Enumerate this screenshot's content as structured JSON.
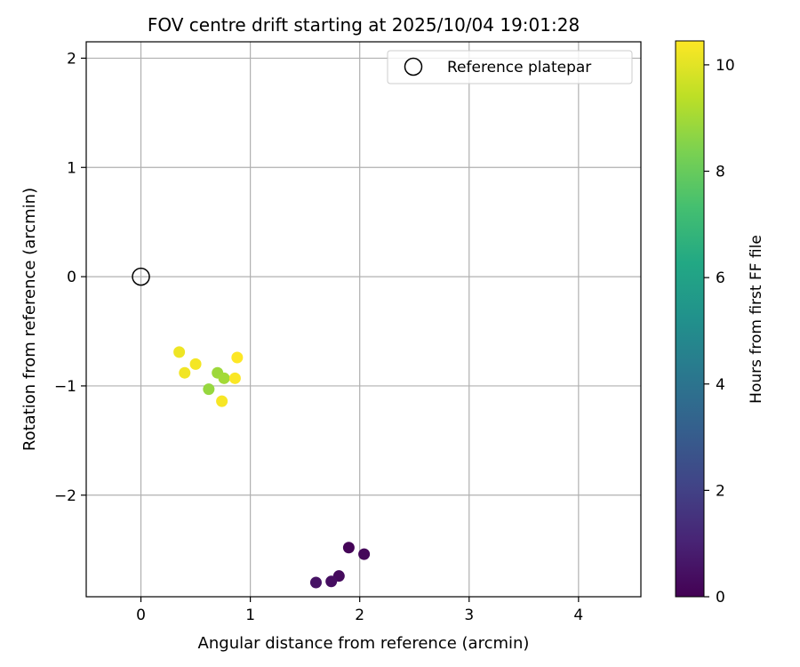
{
  "chart_data": {
    "type": "scatter",
    "title": "FOV centre drift starting at 2025/10/04 19:01:28",
    "xlabel": "Angular distance from reference (arcmin)",
    "ylabel": "Rotation from reference (arcmin)",
    "xlim": [
      -0.5,
      4.57
    ],
    "ylim": [
      -2.93,
      2.15
    ],
    "xticks": [
      0,
      1,
      2,
      3,
      4
    ],
    "yticks": [
      -2,
      -1,
      0,
      1,
      2
    ],
    "xtick_labels": [
      "0",
      "1",
      "2",
      "3",
      "4"
    ],
    "ytick_labels": [
      "−2",
      "−1",
      "0",
      "1",
      "2"
    ],
    "grid": true,
    "legend": {
      "position": "top-right",
      "entries": [
        "Reference platepar"
      ]
    },
    "reference_point": {
      "label": "Reference platepar",
      "x": 0,
      "y": 0
    },
    "colorbar": {
      "label": "Hours from first FF file",
      "colormap": "viridis",
      "range": [
        0,
        10.45
      ],
      "ticks": [
        0,
        2,
        4,
        6,
        8,
        10
      ],
      "tick_labels": [
        "0",
        "2",
        "4",
        "6",
        "8",
        "10"
      ]
    },
    "points": [
      {
        "x": 1.9,
        "y": -2.48,
        "hours": 0.1
      },
      {
        "x": 2.04,
        "y": -2.54,
        "hours": 0.2
      },
      {
        "x": 1.81,
        "y": -2.74,
        "hours": 0.3
      },
      {
        "x": 1.74,
        "y": -2.79,
        "hours": 0.4
      },
      {
        "x": 1.6,
        "y": -2.8,
        "hours": 0.5
      },
      {
        "x": 0.62,
        "y": -1.03,
        "hours": 8.8
      },
      {
        "x": 0.7,
        "y": -0.88,
        "hours": 8.9
      },
      {
        "x": 0.76,
        "y": -0.93,
        "hours": 9.0
      },
      {
        "x": 0.35,
        "y": -0.69,
        "hours": 10.2
      },
      {
        "x": 0.4,
        "y": -0.88,
        "hours": 10.25
      },
      {
        "x": 0.5,
        "y": -0.8,
        "hours": 10.3
      },
      {
        "x": 0.74,
        "y": -1.14,
        "hours": 10.35
      },
      {
        "x": 0.86,
        "y": -0.93,
        "hours": 10.4
      },
      {
        "x": 0.88,
        "y": -0.74,
        "hours": 10.45
      }
    ]
  }
}
